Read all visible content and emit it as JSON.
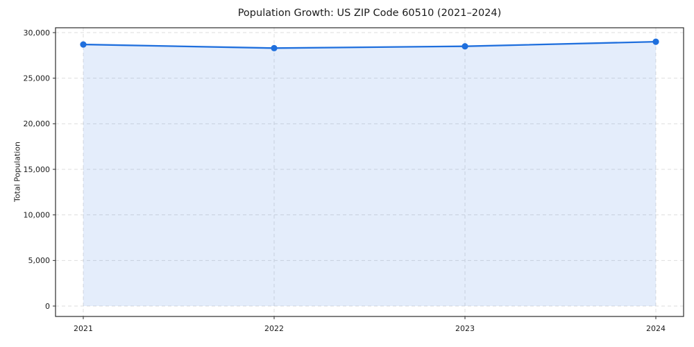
{
  "page": {
    "title": "Population Growth: US ZIP Code 60510 (2021–2024)"
  },
  "chart_data": {
    "type": "area",
    "title": "Population Growth: US ZIP Code 60510 (2021–2024)",
    "xlabel": "",
    "ylabel": "Total Population",
    "categories": [
      "2021",
      "2022",
      "2023",
      "2024"
    ],
    "series": [
      {
        "name": "Total Population",
        "values": [
          28700,
          28300,
          28500,
          29000
        ]
      }
    ],
    "ylim": [
      0,
      30000
    ],
    "yticks": [
      0,
      5000,
      10000,
      15000,
      20000,
      25000,
      30000
    ],
    "ytick_labels": [
      "0",
      "5,000",
      "10,000",
      "15,000",
      "20,000",
      "25,000",
      "30,000"
    ],
    "grid": true,
    "grid_style": "dashed",
    "legend": "none",
    "colors": {
      "line": "#1f6fdd",
      "marker": "#1f6fdd",
      "fill": "#1f6fdd",
      "fill_opacity": 0.12,
      "grid": "#dddddd",
      "axis": "#2b2b2b",
      "text": "#1a1a1a"
    }
  }
}
